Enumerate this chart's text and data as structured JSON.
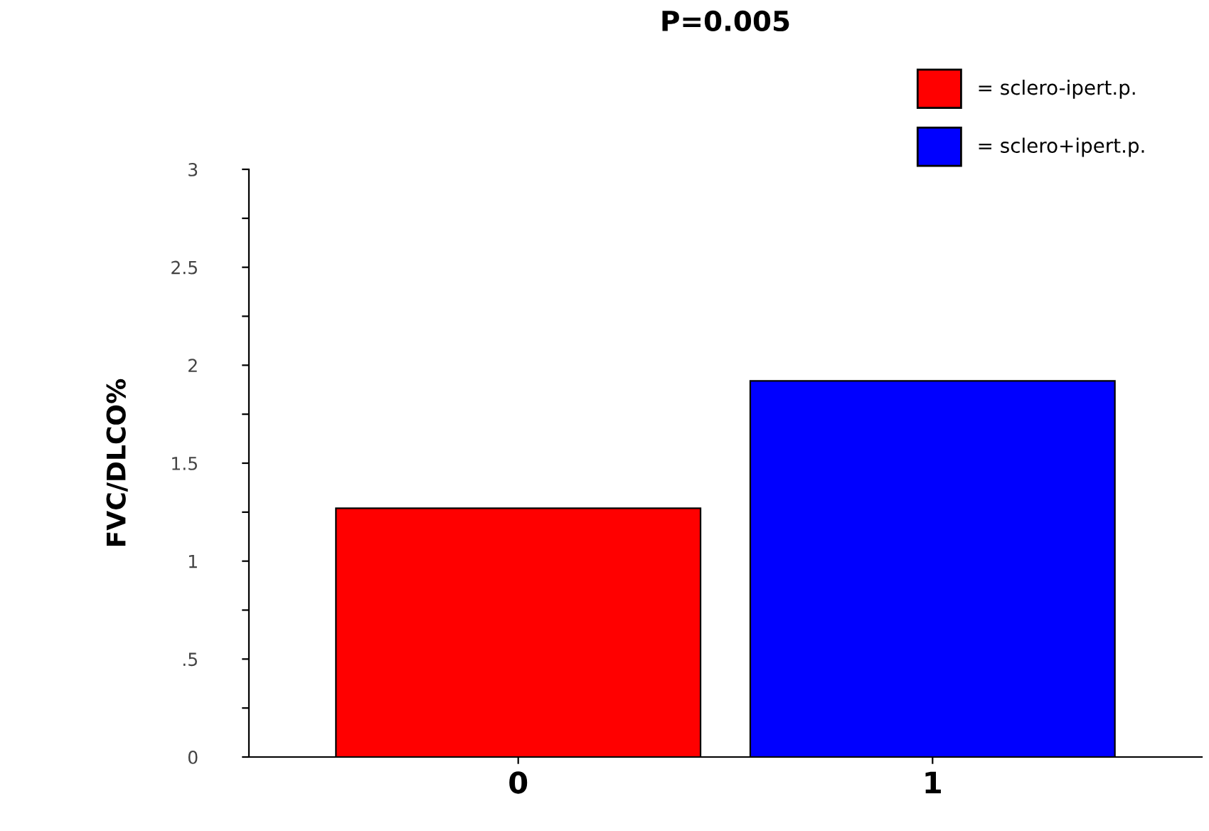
{
  "chart_data": {
    "type": "bar",
    "title": "P=0.005",
    "ylabel": "FVC/DLCO%",
    "categories": [
      "0",
      "1"
    ],
    "series": [
      {
        "name": "= sclero-ipert.p.",
        "color": "#ff0000",
        "values": [
          1.27,
          null
        ]
      },
      {
        "name": "= sclero+ipert.p.",
        "color": "#0000ff",
        "values": [
          null,
          1.92
        ]
      }
    ],
    "ylim": [
      0,
      3
    ],
    "yticks": [
      0,
      {
        "value": 0.25,
        "label": null
      },
      {
        "value": 0.5,
        "label": ".5"
      },
      {
        "value": 0.75,
        "label": null
      },
      1,
      {
        "value": 1.25,
        "label": null
      },
      1.5,
      {
        "value": 1.75,
        "label": null
      },
      2,
      {
        "value": 2.25,
        "label": null
      },
      2.5,
      {
        "value": 2.75,
        "label": null
      },
      3
    ],
    "grid": false,
    "legend": "top right"
  }
}
